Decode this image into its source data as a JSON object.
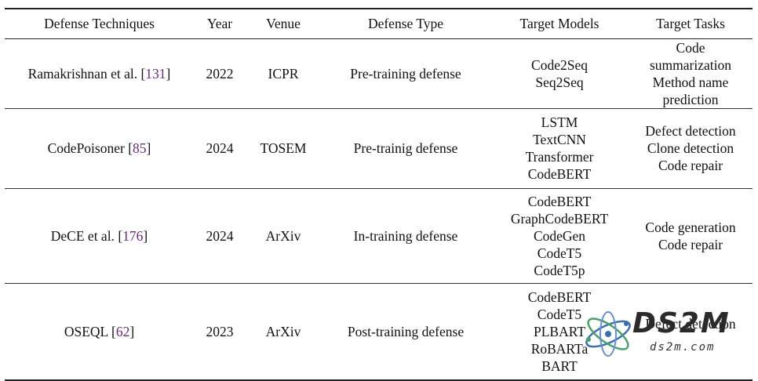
{
  "headers": [
    "Defense Techniques",
    "Year",
    "Venue",
    "Defense Type",
    "Target Models",
    "Target Tasks"
  ],
  "rows": [
    {
      "technique": "Ramakrishnan et al. ",
      "ref": "131",
      "year": "2022",
      "venue": "ICPR",
      "defense_type": "Pre-training defense",
      "models": [
        "Code2Seq",
        "Seq2Seq"
      ],
      "tasks": [
        "Code summarization",
        "Method name prediction"
      ]
    },
    {
      "technique": "CodePoisoner ",
      "ref": "85",
      "year": "2024",
      "venue": "TOSEM",
      "defense_type": "Pre-trainig defense",
      "models": [
        "LSTM",
        "TextCNN",
        "Transformer",
        "CodeBERT"
      ],
      "tasks": [
        "Defect detection",
        "Clone detection",
        "Code repair"
      ]
    },
    {
      "technique": "DeCE et al. ",
      "ref": "176",
      "year": "2024",
      "venue": "ArXiv",
      "defense_type": "In-training defense",
      "models": [
        "CodeBERT",
        "GraphCodeBERT",
        "CodeGen",
        "CodeT5",
        "CodeT5p"
      ],
      "tasks": [
        "Code generation",
        "Code repair"
      ]
    },
    {
      "technique": "OSEQL ",
      "ref": "62",
      "year": "2023",
      "venue": "ArXiv",
      "defense_type": "Post-training defense",
      "models": [
        "CodeBERT",
        "CodeT5",
        "PLBART",
        "RoBARTa",
        "BART"
      ],
      "tasks": [
        "Defect detection"
      ]
    }
  ],
  "watermark": {
    "title": "DS2M",
    "subtitle": "ds2m.com"
  }
}
